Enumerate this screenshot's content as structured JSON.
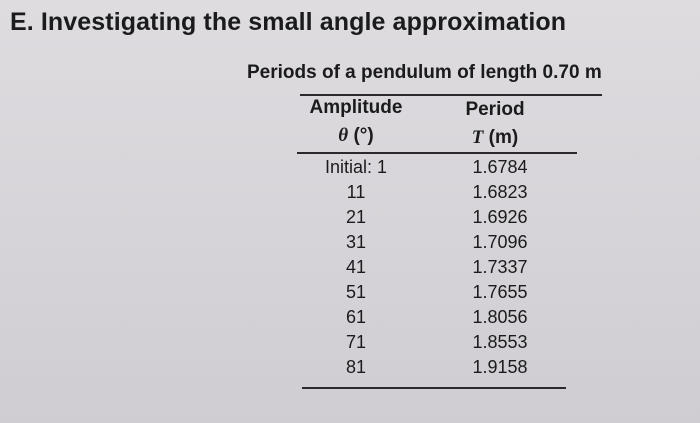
{
  "section_title": "E. Investigating the small angle approximation",
  "table": {
    "caption": "Periods of a pendulum of length 0.70 m",
    "headers": {
      "amplitude_label": "Amplitude",
      "amplitude_symbol": "θ",
      "amplitude_unit": " (°)",
      "period_label": "Period",
      "period_symbol": "T",
      "period_unit": " (m)"
    },
    "rows": [
      {
        "amplitude": "Initial: 1",
        "period": "1.6784"
      },
      {
        "amplitude": "11",
        "period": "1.6823"
      },
      {
        "amplitude": "21",
        "period": "1.6926"
      },
      {
        "amplitude": "31",
        "period": "1.7096"
      },
      {
        "amplitude": "41",
        "period": "1.7337"
      },
      {
        "amplitude": "51",
        "period": "1.7655"
      },
      {
        "amplitude": "61",
        "period": "1.8056"
      },
      {
        "amplitude": "71",
        "period": "1.8553"
      },
      {
        "amplitude": "81",
        "period": "1.9158"
      }
    ]
  }
}
